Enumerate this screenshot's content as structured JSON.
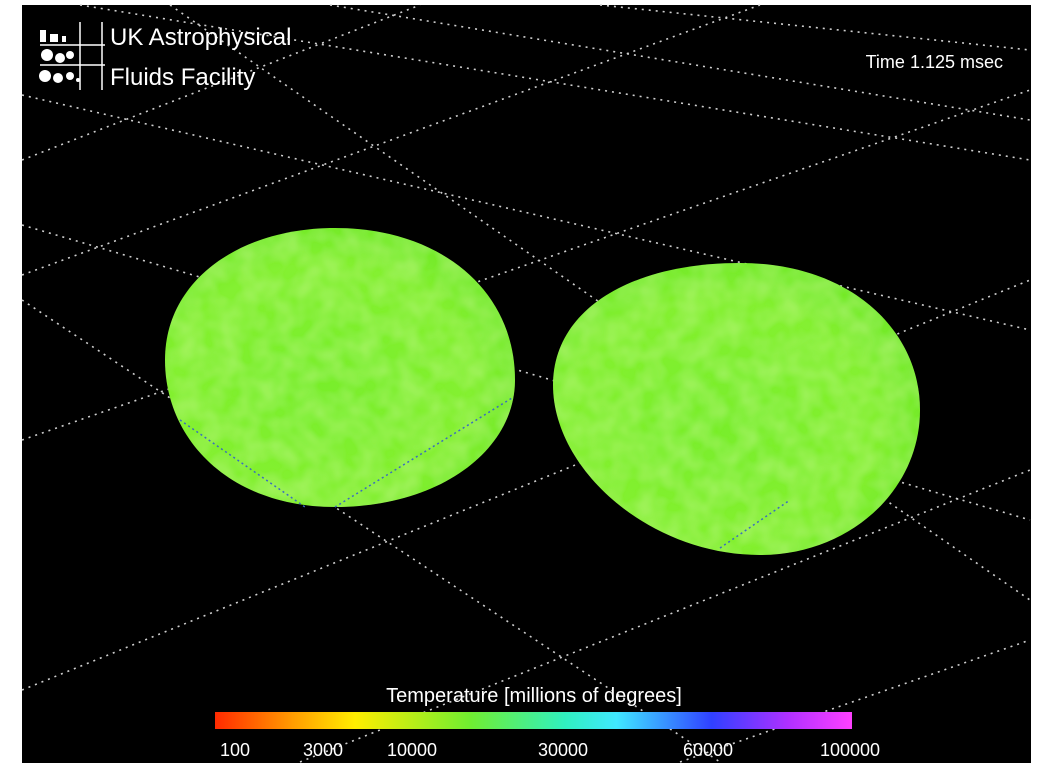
{
  "logo": {
    "line1": "UK Astrophysical",
    "line2": "Fluids Facility"
  },
  "time": "Time 1.125 msec",
  "colorbar": {
    "title": "Temperature [millions of degrees]",
    "ticks": [
      100,
      3000,
      10000,
      30000,
      60000,
      100000
    ]
  }
}
